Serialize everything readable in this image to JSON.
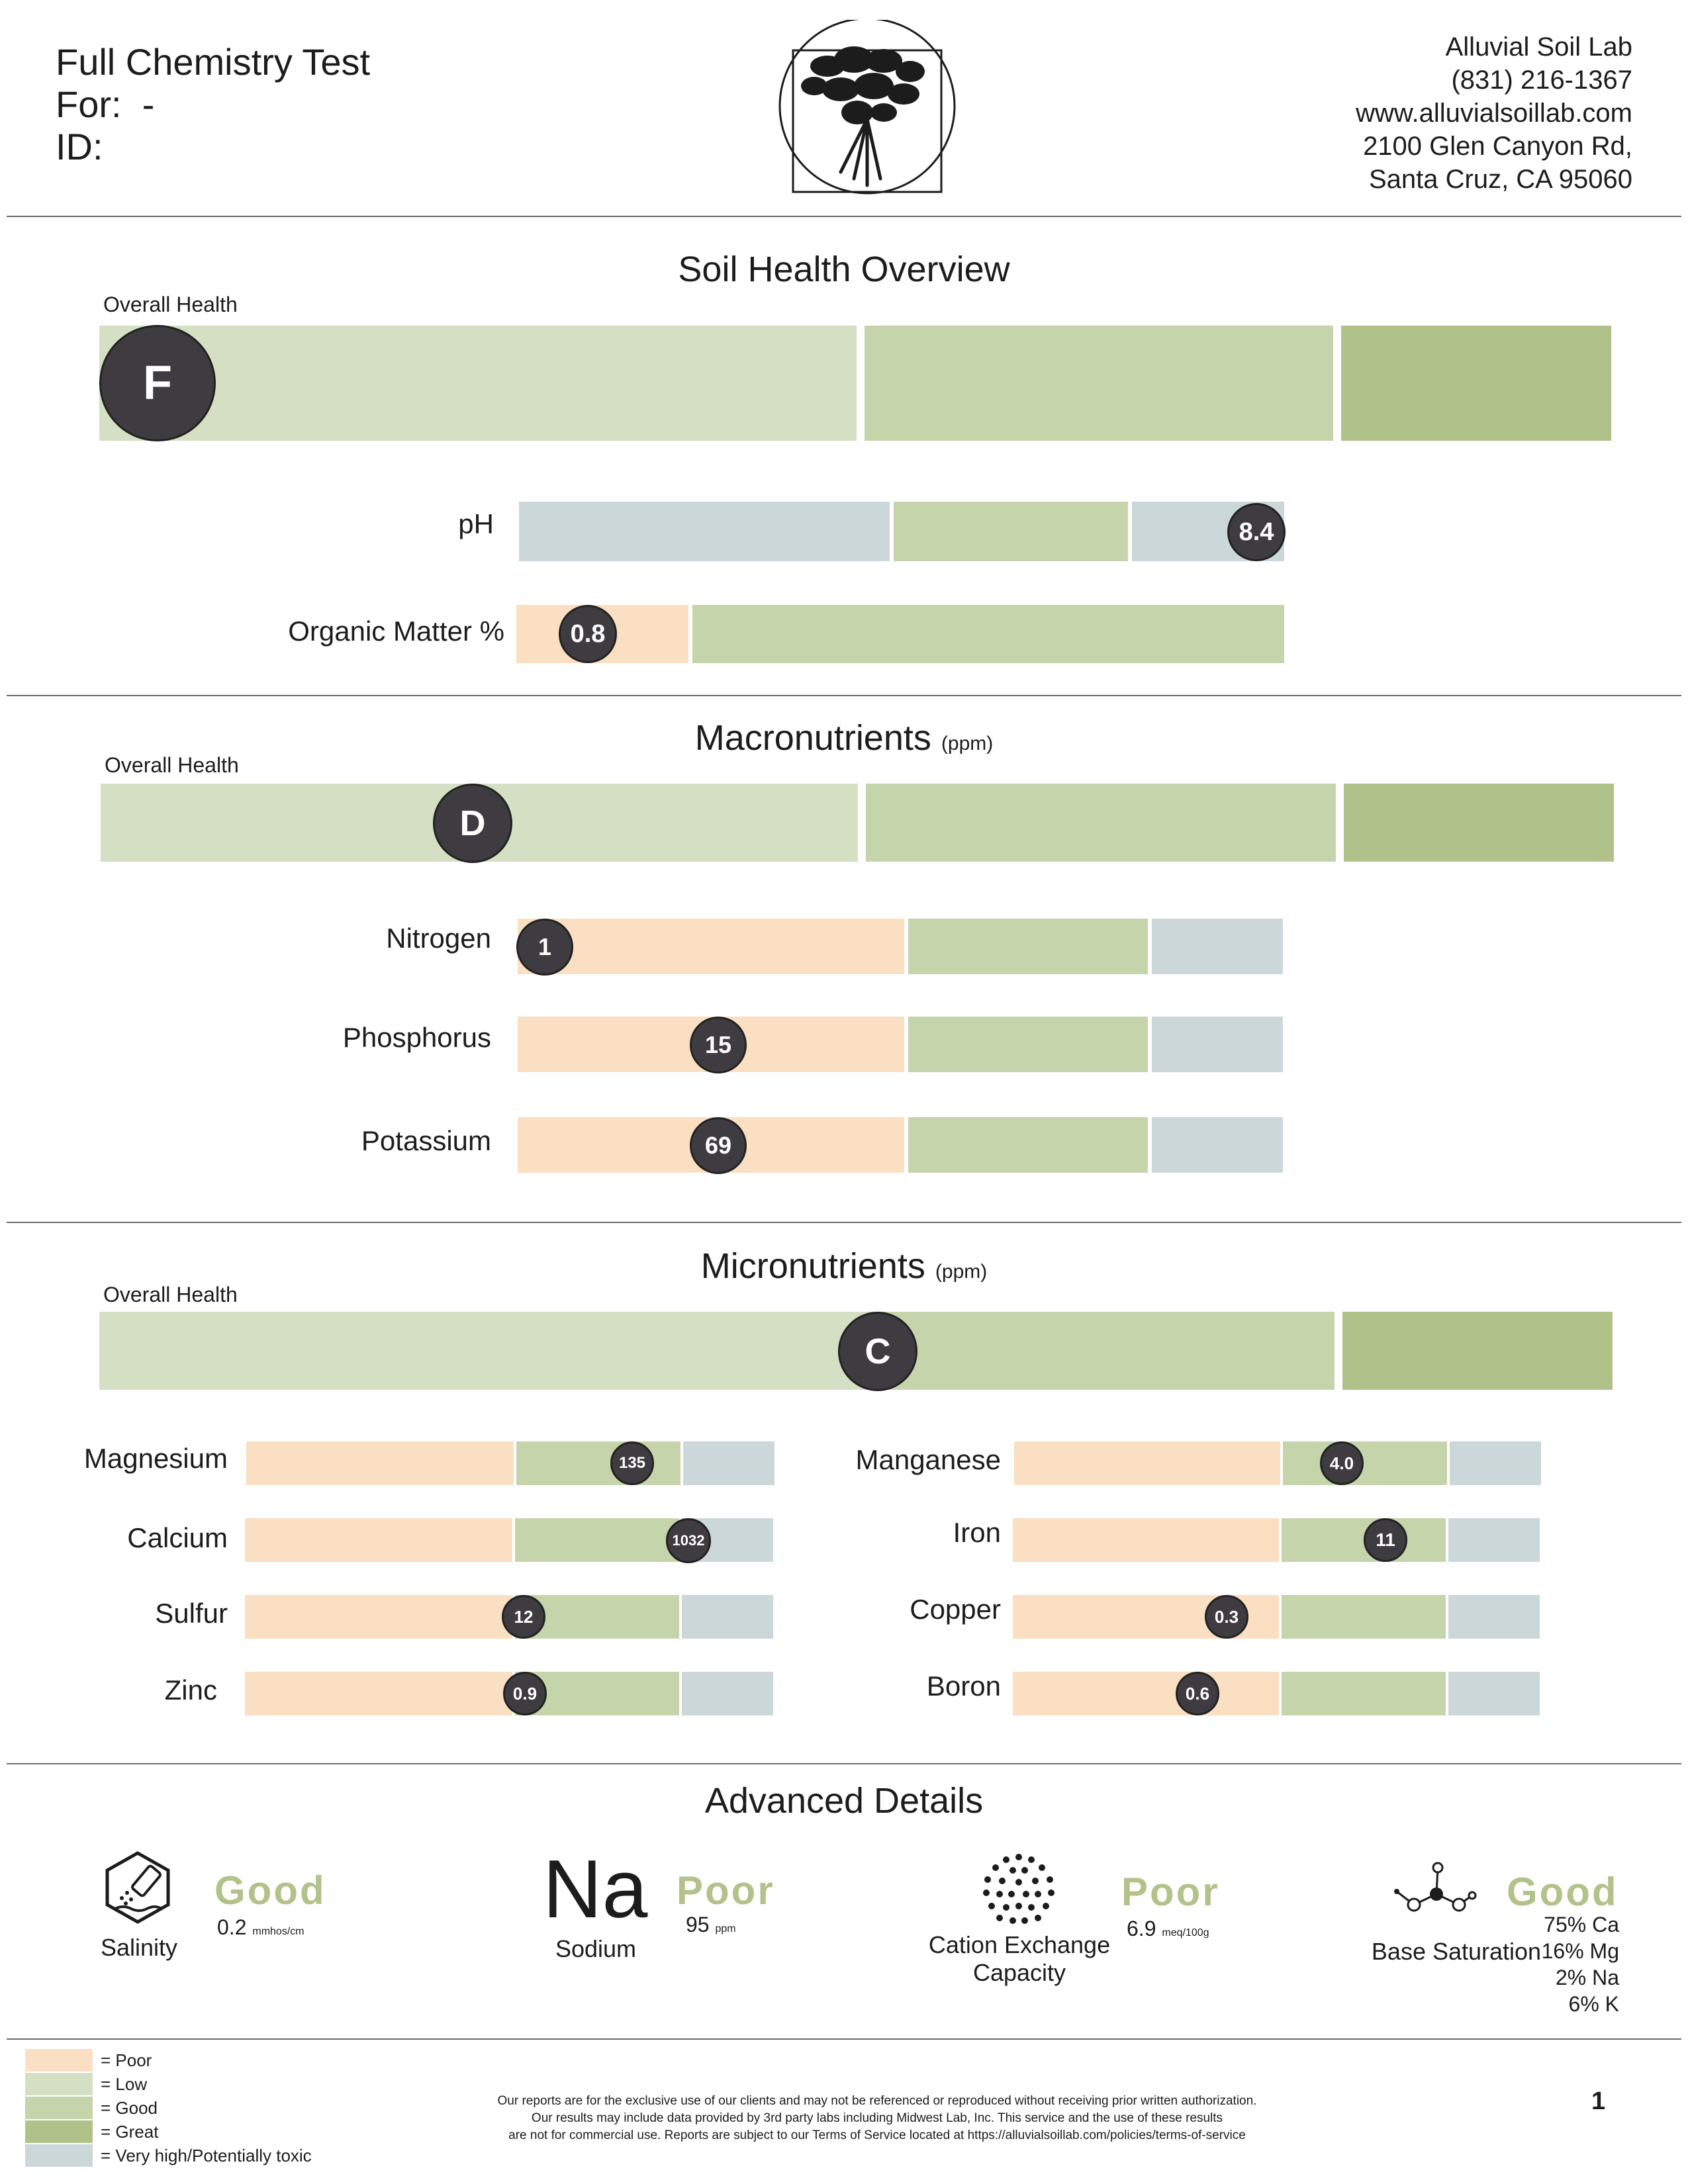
{
  "header": {
    "title": "Full Chemistry Test",
    "for_label": "For:",
    "for_value": "-",
    "id_label": "ID:",
    "lab_name": "Alluvial Soil Lab",
    "phone": "(831) 216-1367",
    "website": "www.alluvialsoillab.com",
    "address_line1": "2100 Glen Canyon Rd,",
    "address_line2": "Santa Cruz, CA 95060"
  },
  "soil_health": {
    "title": "Soil Health Overview",
    "overall_label": "Overall Health",
    "grade": "F",
    "ph": {
      "label": "pH",
      "value": "8.4"
    },
    "organic_matter": {
      "label": "Organic Matter %",
      "value": "0.8"
    }
  },
  "macronutrients": {
    "title": "Macronutrients",
    "unit": "(ppm)",
    "overall_label": "Overall Health",
    "grade": "D",
    "items": [
      {
        "label": "Nitrogen",
        "value": "1"
      },
      {
        "label": "Phosphorus",
        "value": "15"
      },
      {
        "label": "Potassium",
        "value": "69"
      }
    ]
  },
  "micronutrients": {
    "title": "Micronutrients",
    "unit": "(ppm)",
    "overall_label": "Overall Health",
    "grade": "C",
    "left": [
      {
        "label": "Magnesium",
        "value": "135"
      },
      {
        "label": "Calcium",
        "value": "1032"
      },
      {
        "label": "Sulfur",
        "value": "12"
      },
      {
        "label": "Zinc",
        "value": "0.9"
      }
    ],
    "right": [
      {
        "label": "Manganese",
        "value": "4.0"
      },
      {
        "label": "Iron",
        "value": "11"
      },
      {
        "label": "Copper",
        "value": "0.3"
      },
      {
        "label": "Boron",
        "value": "0.6"
      }
    ]
  },
  "advanced": {
    "title": "Advanced Details",
    "salinity": {
      "name": "Salinity",
      "status": "Good",
      "value": "0.2",
      "unit": "mmhos/cm",
      "icon": "salinity-icon"
    },
    "sodium": {
      "symbol": "Na",
      "name": "Sodium",
      "status": "Poor",
      "value": "95",
      "unit": "ppm"
    },
    "cec": {
      "name_line1": "Cation Exchange",
      "name_line2": "Capacity",
      "status": "Poor",
      "value": "6.9",
      "unit": "meq/100g",
      "icon": "dot-cluster-icon"
    },
    "base_saturation": {
      "name": "Base Saturation",
      "status": "Good",
      "ca": "75% Ca",
      "mg": "16% Mg",
      "na": "2% Na",
      "k": "6% K",
      "icon": "molecule-icon"
    }
  },
  "legend": {
    "poor": "=  Poor",
    "low": "=  Low",
    "good": "=  Good",
    "great": "=  Great",
    "high": "=  Very high/Potentially toxic"
  },
  "colors": {
    "poor": "#fbdfc2",
    "low": "#d4dfc4",
    "good": "#c5d4ab",
    "great": "#b0c289",
    "high": "#ccd7d9",
    "badge": "#3e3c40",
    "status_text": "#b2c28a"
  },
  "footer": {
    "line1": "Our reports are for the exclusive use of our clients and may not be referenced or reproduced without receiving prior written authorization.",
    "line2": "Our results may include data provided by 3rd party labs including Midwest Lab, Inc. This service and the use of these results",
    "line3": "are not for commercial use. Reports are subject to our Terms of Service located at https://alluvialsoillab.com/policies/terms-of-service",
    "page_number": "1"
  }
}
